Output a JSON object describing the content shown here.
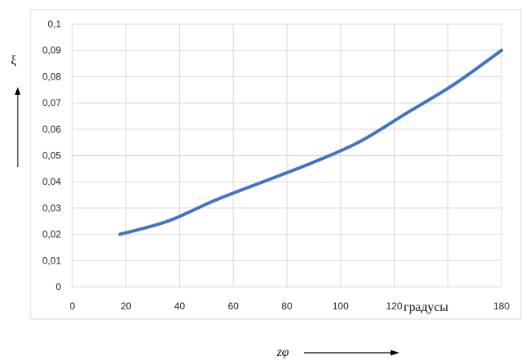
{
  "chart_data": {
    "type": "line",
    "ylabel": "ξ",
    "xlabel": "zφ",
    "x_unit_label": "градусы",
    "xlim": [
      0,
      180
    ],
    "ylim": [
      0,
      0.1
    ],
    "grid": true,
    "x_ticks": [
      "0",
      "20",
      "40",
      "60",
      "80",
      "100",
      "120",
      "",
      "180"
    ],
    "y_ticks": [
      "0",
      "0,01",
      "0,02",
      "0,03",
      "0,04",
      "0,05",
      "0,06",
      "0,07",
      "0,08",
      "0,09",
      "0,1"
    ],
    "series": [
      {
        "color": "#4472C4",
        "x": [
          20,
          40,
          60,
          80,
          100,
          120,
          140,
          160,
          180
        ],
        "y": [
          0.02,
          0.025,
          0.033,
          0.04,
          0.047,
          0.055,
          0.066,
          0.077,
          0.09
        ]
      }
    ]
  }
}
